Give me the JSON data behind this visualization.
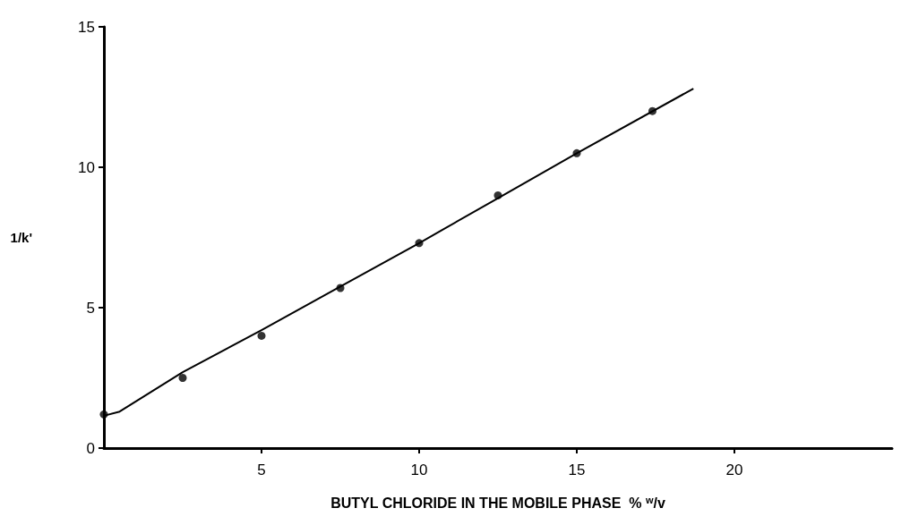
{
  "chart_data": {
    "type": "scatter",
    "xlabel": "BUTYL CHLORIDE IN THE MOBILE PHASE  % $^{w}$/v",
    "ylabel": "1/k'",
    "xlim": [
      0,
      25
    ],
    "xticks": [
      5,
      10,
      15,
      20
    ],
    "ylim": [
      0,
      15
    ],
    "yticks": [
      0,
      5,
      10,
      15
    ],
    "grid": false,
    "marker": "circle",
    "series": [
      {
        "color": "#000000",
        "x": [
          0,
          2.5,
          5,
          7.5,
          10,
          12.5,
          15,
          17.4
        ],
        "values": [
          1.2,
          2.5,
          4.0,
          5.7,
          7.3,
          9.0,
          10.5,
          12.0
        ]
      },
      {
        "type": "line",
        "color": "#000000",
        "marker": "none",
        "line_style": "solid",
        "x": [
          0,
          0.5,
          2.5,
          5,
          7.5,
          10,
          12.5,
          15,
          18.7
        ],
        "values": [
          1.15,
          1.3,
          2.7,
          4.2,
          5.75,
          7.3,
          8.9,
          10.5,
          12.8
        ]
      }
    ]
  }
}
